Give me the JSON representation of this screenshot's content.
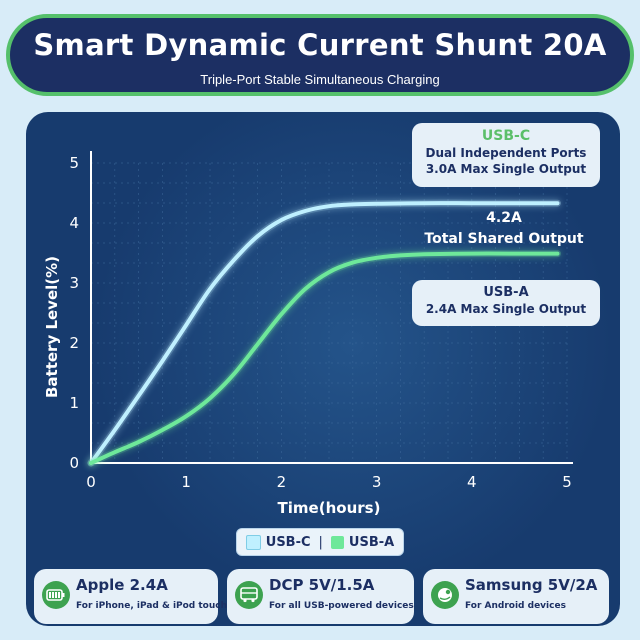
{
  "header": {
    "title": "Smart Dynamic Current Shunt 20A",
    "subtitle": "Triple-Port Stable Simultaneous Charging"
  },
  "callouts": {
    "usbc": {
      "heading": "USB-C",
      "line1": "Dual Independent Ports",
      "line2": "3.0A Max Single Output"
    },
    "shared": {
      "value": "4.2A",
      "label": "Total Shared Output"
    },
    "usba": {
      "heading": "USB-A",
      "line1": "2.4A Max Single Output"
    }
  },
  "legend": {
    "usbc": "USB-C",
    "separator": "|",
    "usba": "USB-A"
  },
  "info_cards": [
    {
      "title": "Apple 2.4A",
      "subtitle": "For iPhone, iPad & iPod touch",
      "icon": "battery-icon"
    },
    {
      "title": "DCP 5V/1.5A",
      "subtitle": "For all USB-powered devices",
      "icon": "bus-icon"
    },
    {
      "title": "Samsung 5V/2A",
      "subtitle": "For Android devices",
      "icon": "android-icon"
    }
  ],
  "colors": {
    "usbc": "#bff0ff",
    "usba": "#6ee89a",
    "accent_green": "#55c06b",
    "navy": "#1c2f63"
  },
  "chart_data": {
    "type": "line",
    "xlabel": "Time(hours)",
    "ylabel": "Battery Level(%)",
    "xlim": [
      0,
      5
    ],
    "ylim": [
      0,
      5
    ],
    "xticks": [
      0,
      1,
      2,
      3,
      4,
      5
    ],
    "yticks": [
      0,
      1,
      2,
      3,
      4,
      5
    ],
    "grid": true,
    "legend_position": "bottom-center",
    "series": [
      {
        "name": "USB-C",
        "color": "#bff0ff",
        "x": [
          0,
          0.25,
          0.5,
          0.75,
          1,
          1.25,
          1.5,
          1.75,
          2,
          2.25,
          2.5,
          2.75,
          3,
          3.5,
          4,
          4.5,
          4.9
        ],
        "y": [
          0,
          0.55,
          1.12,
          1.7,
          2.3,
          2.9,
          3.38,
          3.78,
          4.05,
          4.2,
          4.28,
          4.31,
          4.32,
          4.33,
          4.33,
          4.33,
          4.33
        ]
      },
      {
        "name": "USB-A",
        "color": "#6ee89a",
        "x": [
          0,
          0.25,
          0.5,
          0.75,
          1,
          1.25,
          1.5,
          1.75,
          2,
          2.25,
          2.5,
          2.75,
          3,
          3.25,
          3.5,
          4,
          4.5,
          4.9
        ],
        "y": [
          0,
          0.18,
          0.35,
          0.55,
          0.78,
          1.08,
          1.48,
          1.98,
          2.48,
          2.9,
          3.18,
          3.34,
          3.42,
          3.46,
          3.48,
          3.49,
          3.49,
          3.49
        ]
      }
    ]
  }
}
